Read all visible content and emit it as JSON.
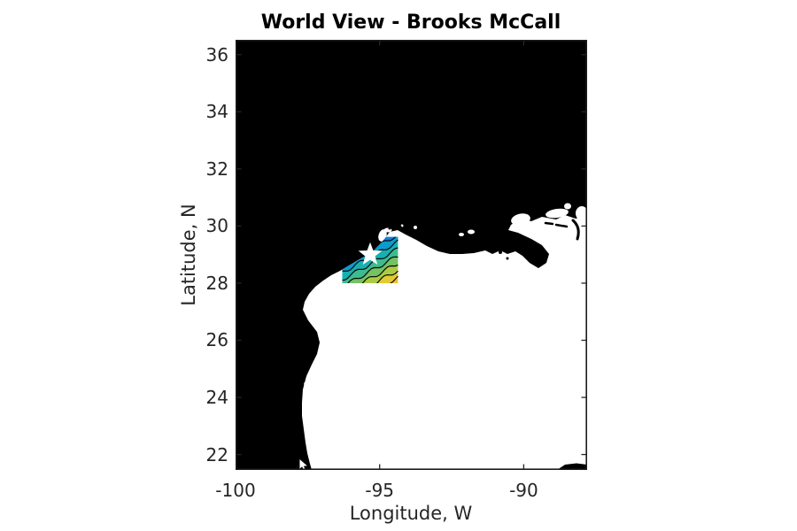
{
  "figure": {
    "title": "World View - Brooks McCall"
  },
  "chart_data": {
    "type": "map-contour",
    "title": "World View - Brooks McCall",
    "xlabel": "Longitude, W",
    "ylabel": "Latitude, N",
    "xlim": [
      -100,
      -87.8
    ],
    "ylim": [
      21.46,
      36.52
    ],
    "x_ticks": [
      -100,
      -95,
      -90
    ],
    "y_ticks": [
      22,
      24,
      26,
      28,
      30,
      32,
      34,
      36
    ],
    "grid": false,
    "land_color": "#000000",
    "water_color": "#ffffff",
    "axis_color": "#262626",
    "region_shown": "Gulf of Mexico, Texas-Louisiana coast",
    "ship_marker": {
      "shape": "star",
      "label": "Brooks McCall vessel position",
      "lon": -95.33,
      "lat": 29.0,
      "color": "#ffffff"
    },
    "contour_region": {
      "description": "filled contour survey patch near Galveston",
      "lon_range": [
        -96.3,
        -94.28
      ],
      "lat_range": [
        28.0,
        29.62
      ],
      "gradient_direction": "dark blue NW to yellow-orange SE",
      "band_colors": [
        "#3a2d92",
        "#3b49de",
        "#2b64e6",
        "#1180da",
        "#0b9bcd",
        "#16b0b2",
        "#3dbc8f",
        "#74c264",
        "#accb44",
        "#dfcb32",
        "#f3c02f"
      ],
      "line_color": "#0a0a0a"
    }
  }
}
